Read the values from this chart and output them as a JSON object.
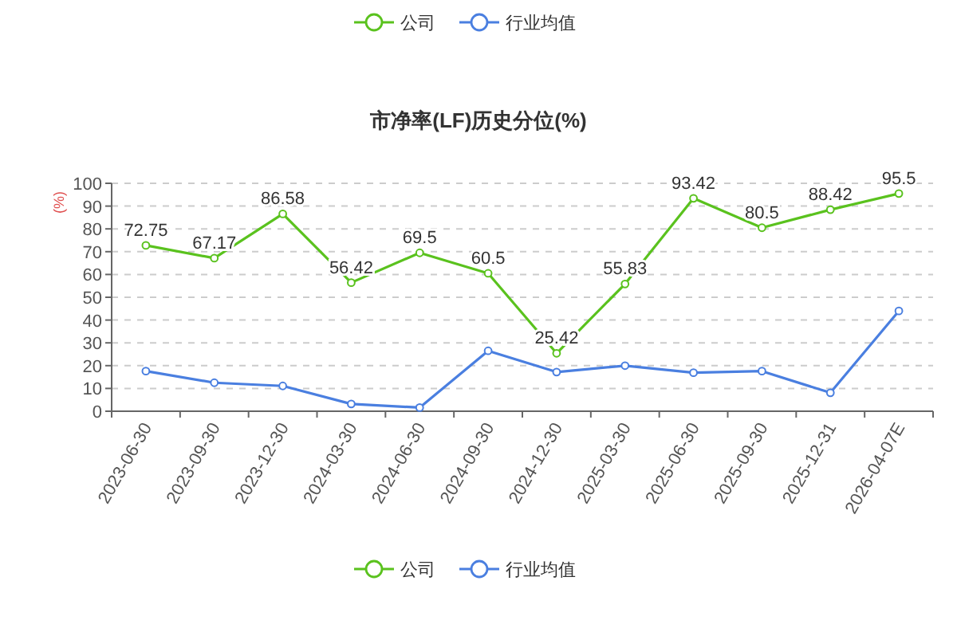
{
  "chart_data": {
    "type": "line",
    "title": "市净率(LF)历史分位(%)",
    "ylabel": "(%)",
    "categories": [
      "2023-06-30",
      "2023-09-30",
      "2023-12-30",
      "2024-03-30",
      "2024-06-30",
      "2024-09-30",
      "2024-12-30",
      "2025-03-30",
      "2025-06-30",
      "2025-09-30",
      "2025-12-31",
      "2026-04-07E"
    ],
    "series": [
      {
        "name": "公司",
        "color": "#5ac21e",
        "values": [
          72.75,
          67.17,
          86.58,
          56.42,
          69.5,
          60.5,
          25.42,
          55.83,
          93.42,
          80.5,
          88.42,
          95.5
        ],
        "value_labels": [
          "72.75",
          "67.17",
          "86.58",
          "56.42",
          "69.5",
          "60.5",
          "25.42",
          "55.83",
          "93.42",
          "80.5",
          "88.42",
          "95.5"
        ]
      },
      {
        "name": "行业均值",
        "color": "#4a7fe0",
        "values": [
          17.6,
          12.5,
          11.1,
          3.2,
          1.6,
          26.5,
          17.2,
          20,
          16.9,
          17.6,
          8.1,
          44
        ]
      }
    ],
    "ylim": [
      0,
      100
    ],
    "yticks": [
      0,
      10,
      20,
      30,
      40,
      50,
      60,
      70,
      80,
      90,
      100
    ],
    "grid": "y",
    "legend": "top",
    "marker": "circle"
  }
}
